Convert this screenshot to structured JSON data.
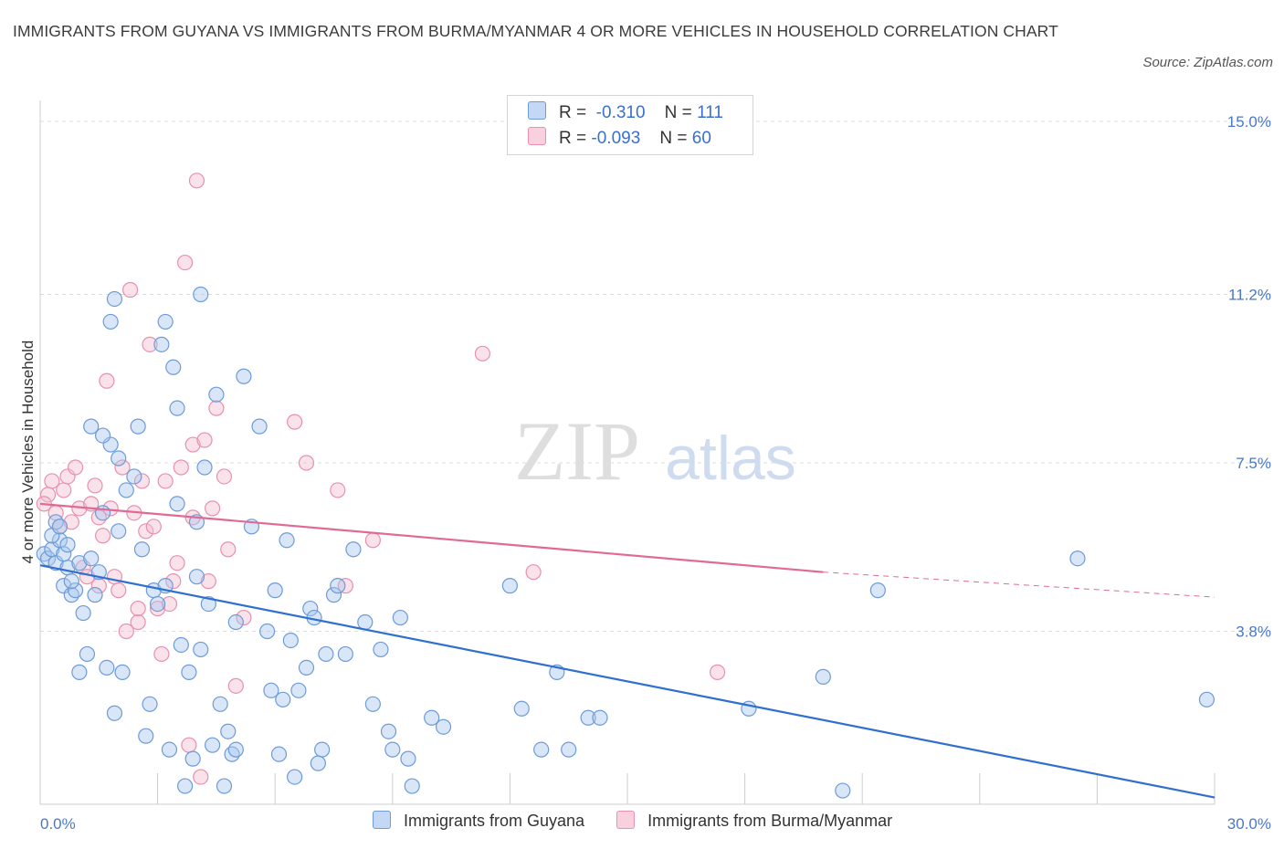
{
  "title": "IMMIGRANTS FROM GUYANA VS IMMIGRANTS FROM BURMA/MYANMAR 4 OR MORE VEHICLES IN HOUSEHOLD CORRELATION CHART",
  "source": "Source: ZipAtlas.com",
  "watermark": {
    "zip": "ZIP",
    "atlas": "atlas"
  },
  "legend": {
    "rows": [
      {
        "r_label": "R =",
        "r_value": "-0.310",
        "n_label": "N =",
        "n_value": "111"
      },
      {
        "r_label": "R =",
        "r_value": "-0.093",
        "n_label": "N =",
        "n_value": "60"
      }
    ]
  },
  "bottom_legend": [
    "Immigrants from Guyana",
    "Immigrants from Burma/Myanmar"
  ],
  "colors": {
    "blue_fill": "#a9c8f0",
    "blue_stroke": "#6d9bd8",
    "blue_line": "#2f6fd0",
    "pink_fill": "#f5bed0",
    "pink_stroke": "#e890ad",
    "pink_line": "#e06a95",
    "tick_text": "#4a78c8",
    "grid": "#dddddd"
  },
  "chart_data": {
    "type": "scatter",
    "ylabel": "4 or more Vehicles in Household",
    "xlim": [
      0,
      30
    ],
    "ylim": [
      0,
      15
    ],
    "x_tick_labels": [
      "0.0%",
      "30.0%"
    ],
    "y_ticks": [
      3.8,
      7.5,
      11.2,
      15.0
    ],
    "y_tick_labels": [
      "3.8%",
      "7.5%",
      "11.2%",
      "15.0%"
    ],
    "grid": true,
    "series": [
      {
        "name": "Immigrants from Guyana",
        "trend": {
          "x": [
            0,
            30
          ],
          "y": [
            5.25,
            0.15
          ]
        },
        "points": [
          [
            0.1,
            5.5
          ],
          [
            0.2,
            5.4
          ],
          [
            0.3,
            5.6
          ],
          [
            0.4,
            5.3
          ],
          [
            0.5,
            5.8
          ],
          [
            0.6,
            4.8
          ],
          [
            0.7,
            5.2
          ],
          [
            0.8,
            4.6
          ],
          [
            0.4,
            6.2
          ],
          [
            0.3,
            5.9
          ],
          [
            0.5,
            6.1
          ],
          [
            0.6,
            5.5
          ],
          [
            0.9,
            4.7
          ],
          [
            1.0,
            5.3
          ],
          [
            1.1,
            4.2
          ],
          [
            1.2,
            3.3
          ],
          [
            1.0,
            2.9
          ],
          [
            0.8,
            4.9
          ],
          [
            0.7,
            5.7
          ],
          [
            1.3,
            5.4
          ],
          [
            1.4,
            4.6
          ],
          [
            1.5,
            5.1
          ],
          [
            1.6,
            6.4
          ],
          [
            1.7,
            3.0
          ],
          [
            1.8,
            7.9
          ],
          [
            1.9,
            2.0
          ],
          [
            2.0,
            6.0
          ],
          [
            2.1,
            2.9
          ],
          [
            2.2,
            6.9
          ],
          [
            2.4,
            7.2
          ],
          [
            2.5,
            8.3
          ],
          [
            2.6,
            5.6
          ],
          [
            2.7,
            1.5
          ],
          [
            2.8,
            2.2
          ],
          [
            2.9,
            4.7
          ],
          [
            3.0,
            4.4
          ],
          [
            3.2,
            4.8
          ],
          [
            3.3,
            1.2
          ],
          [
            3.4,
            9.6
          ],
          [
            3.5,
            6.6
          ],
          [
            3.6,
            3.5
          ],
          [
            3.7,
            0.4
          ],
          [
            3.8,
            2.9
          ],
          [
            3.9,
            1.0
          ],
          [
            4.0,
            5.0
          ],
          [
            4.1,
            3.4
          ],
          [
            4.2,
            7.4
          ],
          [
            4.3,
            4.4
          ],
          [
            4.4,
            1.3
          ],
          [
            4.5,
            9.0
          ],
          [
            4.6,
            2.2
          ],
          [
            4.7,
            0.4
          ],
          [
            4.8,
            1.6
          ],
          [
            4.9,
            1.1
          ],
          [
            5.0,
            1.2
          ],
          [
            5.2,
            9.4
          ],
          [
            5.4,
            6.1
          ],
          [
            5.6,
            8.3
          ],
          [
            5.8,
            3.8
          ],
          [
            6.0,
            4.7
          ],
          [
            6.1,
            1.1
          ],
          [
            6.2,
            2.3
          ],
          [
            6.3,
            5.8
          ],
          [
            6.5,
            0.6
          ],
          [
            6.6,
            2.5
          ],
          [
            6.8,
            3.0
          ],
          [
            6.9,
            4.3
          ],
          [
            7.0,
            4.1
          ],
          [
            7.2,
            1.2
          ],
          [
            7.3,
            3.3
          ],
          [
            7.5,
            4.6
          ],
          [
            7.6,
            4.8
          ],
          [
            7.8,
            3.3
          ],
          [
            8.0,
            5.6
          ],
          [
            8.3,
            4.0
          ],
          [
            8.5,
            2.2
          ],
          [
            8.7,
            3.4
          ],
          [
            8.9,
            1.6
          ],
          [
            9.0,
            1.2
          ],
          [
            9.2,
            4.1
          ],
          [
            9.4,
            1.0
          ],
          [
            9.5,
            0.4
          ],
          [
            10.0,
            1.9
          ],
          [
            10.3,
            1.7
          ],
          [
            12.0,
            4.8
          ],
          [
            12.3,
            2.1
          ],
          [
            12.8,
            1.2
          ],
          [
            13.2,
            2.9
          ],
          [
            13.5,
            1.2
          ],
          [
            14.0,
            1.9
          ],
          [
            14.3,
            1.9
          ],
          [
            4.1,
            11.2
          ],
          [
            1.8,
            10.6
          ],
          [
            3.2,
            10.6
          ],
          [
            1.9,
            11.1
          ],
          [
            3.1,
            10.1
          ],
          [
            3.5,
            8.7
          ],
          [
            2.0,
            7.6
          ],
          [
            1.3,
            8.3
          ],
          [
            1.6,
            8.1
          ],
          [
            4.0,
            6.2
          ],
          [
            5.0,
            4.0
          ],
          [
            5.9,
            2.5
          ],
          [
            6.4,
            3.6
          ],
          [
            7.1,
            0.9
          ],
          [
            18.1,
            2.1
          ],
          [
            20.0,
            2.8
          ],
          [
            21.4,
            4.7
          ],
          [
            26.5,
            5.4
          ],
          [
            29.8,
            2.3
          ],
          [
            20.5,
            0.3
          ]
        ]
      },
      {
        "name": "Immigrants from Burma/Myanmar",
        "trend": {
          "x": [
            0,
            20.0
          ],
          "y": [
            6.6,
            5.1
          ]
        },
        "trend_dashed": {
          "x": [
            20.0,
            30
          ],
          "y": [
            5.1,
            4.55
          ]
        },
        "points": [
          [
            0.2,
            6.8
          ],
          [
            0.3,
            7.1
          ],
          [
            0.4,
            6.4
          ],
          [
            0.5,
            6.1
          ],
          [
            0.6,
            6.9
          ],
          [
            0.7,
            7.2
          ],
          [
            0.8,
            6.2
          ],
          [
            0.9,
            7.4
          ],
          [
            1.0,
            6.5
          ],
          [
            1.1,
            5.2
          ],
          [
            1.2,
            5.0
          ],
          [
            1.3,
            6.6
          ],
          [
            1.4,
            7.0
          ],
          [
            1.5,
            6.3
          ],
          [
            1.6,
            5.9
          ],
          [
            1.7,
            9.3
          ],
          [
            1.8,
            6.5
          ],
          [
            1.9,
            5.0
          ],
          [
            2.0,
            4.7
          ],
          [
            2.1,
            7.4
          ],
          [
            2.2,
            3.8
          ],
          [
            2.3,
            11.3
          ],
          [
            2.4,
            6.4
          ],
          [
            2.5,
            4.0
          ],
          [
            2.6,
            7.1
          ],
          [
            2.7,
            6.0
          ],
          [
            2.8,
            10.1
          ],
          [
            2.9,
            6.1
          ],
          [
            3.0,
            4.3
          ],
          [
            3.1,
            3.3
          ],
          [
            3.2,
            7.1
          ],
          [
            3.3,
            4.4
          ],
          [
            3.4,
            4.9
          ],
          [
            3.5,
            5.3
          ],
          [
            3.6,
            7.4
          ],
          [
            3.7,
            11.9
          ],
          [
            3.8,
            1.3
          ],
          [
            3.9,
            7.9
          ],
          [
            4.0,
            13.7
          ],
          [
            4.1,
            0.6
          ],
          [
            4.2,
            8.0
          ],
          [
            4.3,
            4.9
          ],
          [
            4.5,
            8.7
          ],
          [
            4.7,
            7.2
          ],
          [
            4.8,
            5.6
          ],
          [
            5.0,
            2.6
          ],
          [
            5.2,
            4.1
          ],
          [
            6.5,
            8.4
          ],
          [
            6.8,
            7.5
          ],
          [
            7.6,
            6.9
          ],
          [
            7.8,
            4.8
          ],
          [
            8.5,
            5.8
          ],
          [
            11.3,
            9.9
          ],
          [
            12.6,
            5.1
          ],
          [
            17.3,
            2.9
          ],
          [
            0.1,
            6.6
          ],
          [
            1.5,
            4.8
          ],
          [
            2.5,
            4.3
          ],
          [
            3.9,
            6.3
          ],
          [
            4.4,
            6.5
          ]
        ]
      }
    ]
  }
}
